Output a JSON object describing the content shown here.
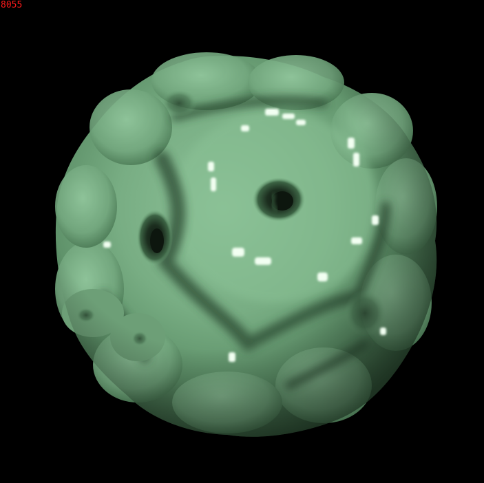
{
  "frame_label": "8055",
  "colors": {
    "background": "#000000",
    "label": "#ff1a1a",
    "surface_base": "#7fb488",
    "surface_light": "#a8d4ae",
    "surface_dark": "#2a4a30",
    "highlight": "#f2fff2"
  },
  "icons": {
    "object": "molecular-surface-blob-icon"
  }
}
